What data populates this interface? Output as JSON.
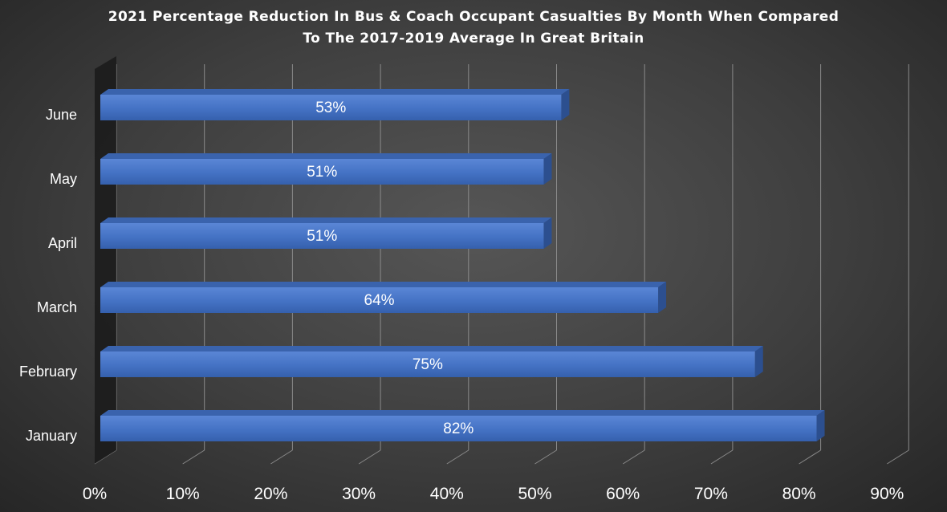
{
  "chart_data": {
    "type": "bar",
    "orientation": "horizontal",
    "style": "3d",
    "title": "2021 Percentage Reduction In Bus & Coach Occupant Casualties By Month When Compared To The 2017-2019 Average In Great Britain",
    "title_lines": [
      "2021 Percentage Reduction In Bus & Coach Occupant Casualties By Month When Compared",
      "To The 2017-2019 Average In Great Britain"
    ],
    "categories": [
      "January",
      "February",
      "March",
      "April",
      "May",
      "June"
    ],
    "values": [
      82,
      75,
      64,
      51,
      51,
      53
    ],
    "data_labels": [
      "82%",
      "75%",
      "64%",
      "51%",
      "51%",
      "53%"
    ],
    "xlim": [
      0,
      90
    ],
    "x_ticks": [
      "0%",
      "10%",
      "20%",
      "30%",
      "40%",
      "50%",
      "60%",
      "70%",
      "80%",
      "90%"
    ],
    "xlabel": "",
    "ylabel": "",
    "grid": true,
    "legend": false,
    "colors": {
      "bar_front": "#4472c4",
      "bar_top": "#3a63ad",
      "bar_side": "#2c4f8f",
      "grid": "#8a8a8a",
      "text": "#ffffff"
    }
  }
}
